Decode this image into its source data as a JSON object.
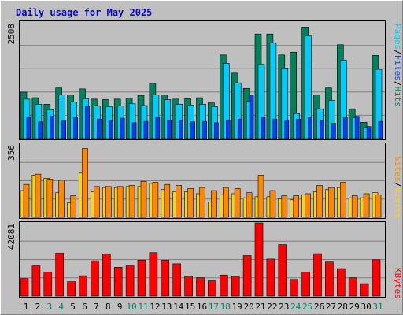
{
  "title": "Daily usage for May 2025",
  "colors": {
    "background": "#bfbfbf",
    "title": "#0000cc",
    "hits": "#00805c",
    "files": "#00ccff",
    "pages": "#0040ff",
    "visits": "#ffd700",
    "sites": "#ff8800",
    "kbytes": "#ff0000",
    "weekend_label": "#00805c",
    "weekday_label": "#000000"
  },
  "chart_data": [
    {
      "type": "bar",
      "panel": "hits-files-pages",
      "max_label": "2508",
      "ylim": [
        0,
        2508
      ],
      "grid": true,
      "right_labels": [
        "Pages",
        "Files",
        "Hits"
      ],
      "series": [
        {
          "name": "Hits",
          "values": [
            1000,
            880,
            740,
            1090,
            940,
            1070,
            850,
            840,
            850,
            870,
            930,
            1190,
            940,
            850,
            860,
            880,
            770,
            1800,
            1410,
            1080,
            2250,
            2250,
            1800,
            1860,
            2400,
            940,
            1090,
            2020,
            640,
            350,
            1790
          ]
        },
        {
          "name": "Files",
          "values": [
            850,
            740,
            620,
            940,
            790,
            860,
            700,
            690,
            700,
            750,
            710,
            940,
            840,
            740,
            720,
            740,
            690,
            1620,
            1200,
            800,
            1600,
            2060,
            1520,
            540,
            2210,
            640,
            820,
            1690,
            450,
            240,
            1490
          ]
        },
        {
          "name": "Pages",
          "values": [
            460,
            360,
            480,
            380,
            450,
            700,
            420,
            380,
            440,
            340,
            370,
            460,
            400,
            380,
            360,
            370,
            340,
            400,
            420,
            940,
            460,
            420,
            380,
            420,
            450,
            400,
            330,
            450,
            480,
            260,
            370
          ]
        }
      ]
    },
    {
      "type": "bar",
      "panel": "visits-sites",
      "max_label": "356",
      "ylim": [
        0,
        356
      ],
      "grid": true,
      "right_labels": [
        "Sites",
        "Visits"
      ],
      "series": [
        {
          "name": "Visits",
          "values": [
            130,
            205,
            190,
            120,
            70,
            215,
            125,
            145,
            145,
            150,
            150,
            165,
            135,
            125,
            125,
            115,
            75,
            110,
            115,
            95,
            100,
            100,
            90,
            85,
            110,
            125,
            135,
            145,
            95,
            95,
            120
          ]
        },
        {
          "name": "Sites",
          "values": [
            160,
            210,
            185,
            180,
            105,
            335,
            150,
            150,
            150,
            155,
            175,
            170,
            160,
            155,
            140,
            145,
            130,
            145,
            140,
            120,
            205,
            130,
            105,
            105,
            115,
            155,
            145,
            170,
            105,
            115,
            110
          ]
        }
      ]
    },
    {
      "type": "bar",
      "panel": "kbytes",
      "max_label": "42081",
      "ylim": [
        0,
        42081
      ],
      "grid": true,
      "right_labels": [
        "KBytes"
      ],
      "series": [
        {
          "name": "KBytes",
          "values": [
            10100,
            17400,
            13700,
            24700,
            8300,
            11700,
            20300,
            24300,
            16600,
            17400,
            20700,
            25000,
            20600,
            18600,
            11400,
            10600,
            8800,
            12100,
            11400,
            23300,
            42081,
            21300,
            29600,
            9600,
            13700,
            24400,
            19600,
            15800,
            10600,
            7200,
            20900
          ]
        }
      ]
    }
  ],
  "days": [
    "1",
    "2",
    "3",
    "4",
    "5",
    "6",
    "7",
    "8",
    "9",
    "10",
    "11",
    "12",
    "13",
    "14",
    "15",
    "16",
    "17",
    "18",
    "19",
    "20",
    "21",
    "22",
    "23",
    "24",
    "25",
    "26",
    "27",
    "28",
    "29",
    "30",
    "31"
  ],
  "weekend_days": [
    3,
    4,
    10,
    11,
    17,
    18,
    24,
    25,
    31
  ]
}
